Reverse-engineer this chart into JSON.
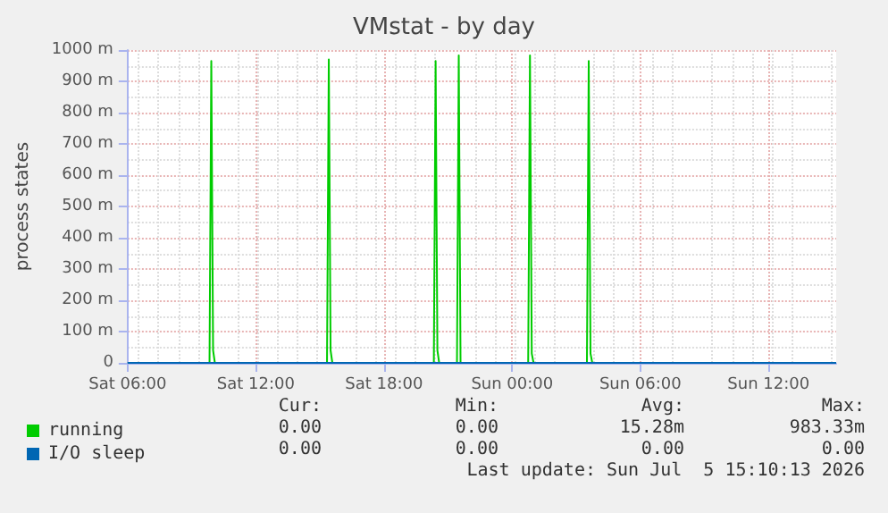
{
  "chart_data": {
    "type": "line",
    "title": "VMstat - by day",
    "ylabel": "process states",
    "xlim": [
      "2026-07-04T06:00",
      "2026-07-05T15:10"
    ],
    "xticks": [
      {
        "value": "2026-07-04T06:00",
        "label": "Sat 06:00"
      },
      {
        "value": "2026-07-04T12:00",
        "label": "Sat 12:00"
      },
      {
        "value": "2026-07-04T18:00",
        "label": "Sat 18:00"
      },
      {
        "value": "2026-07-05T00:00",
        "label": "Sun 00:00"
      },
      {
        "value": "2026-07-05T06:00",
        "label": "Sun 06:00"
      },
      {
        "value": "2026-07-05T12:00",
        "label": "Sun 12:00"
      }
    ],
    "ylim": [
      0,
      1000
    ],
    "yticks": [
      0,
      {
        "value": 100,
        "label": "100 m"
      },
      {
        "value": 200,
        "label": "200 m"
      },
      {
        "value": 300,
        "label": "300 m"
      },
      {
        "value": 400,
        "label": "400 m"
      },
      {
        "value": 500,
        "label": "500 m"
      },
      {
        "value": 600,
        "label": "600 m"
      },
      {
        "value": 700,
        "label": "700 m"
      },
      {
        "value": 800,
        "label": "800 m"
      },
      {
        "value": 900,
        "label": "900 m"
      },
      {
        "value": 1000,
        "label": "1000 m"
      }
    ],
    "series": [
      {
        "name": "running",
        "color": "#00cc00",
        "x": [
          "2026-07-04T06:00",
          "2026-07-04T09:50",
          "2026-07-04T09:55",
          "2026-07-04T10:00",
          "2026-07-04T10:05",
          "2026-07-04T15:20",
          "2026-07-04T15:25",
          "2026-07-04T15:30",
          "2026-07-04T15:35",
          "2026-07-04T20:20",
          "2026-07-04T20:25",
          "2026-07-04T20:30",
          "2026-07-04T20:35",
          "2026-07-04T21:25",
          "2026-07-04T21:30",
          "2026-07-04T21:35",
          "2026-07-05T00:45",
          "2026-07-05T00:50",
          "2026-07-05T00:55",
          "2026-07-05T01:00",
          "2026-07-05T03:30",
          "2026-07-05T03:35",
          "2026-07-05T03:40",
          "2026-07-05T03:45",
          "2026-07-05T15:10"
        ],
        "values": [
          0,
          0,
          965,
          40,
          0,
          0,
          970,
          40,
          0,
          0,
          965,
          40,
          0,
          0,
          983,
          0,
          0,
          983,
          30,
          0,
          0,
          965,
          30,
          0,
          0
        ]
      },
      {
        "name": "I/O sleep",
        "color": "#0066b3",
        "x": [
          "2026-07-04T06:00",
          "2026-07-05T15:10"
        ],
        "values": [
          0,
          0
        ]
      }
    ],
    "grid": true,
    "legend": "bottom left",
    "marker": "none",
    "line_style": "solid",
    "annotations": [
      "Cur:",
      "Min:",
      "Avg:",
      "Max:",
      "0.00",
      "0.00",
      "15.28m",
      "983.33m",
      "0.00",
      "0.00",
      "0.00",
      "0.00",
      "Last update: Sun Jul  5 15:10:13 2026"
    ]
  }
}
